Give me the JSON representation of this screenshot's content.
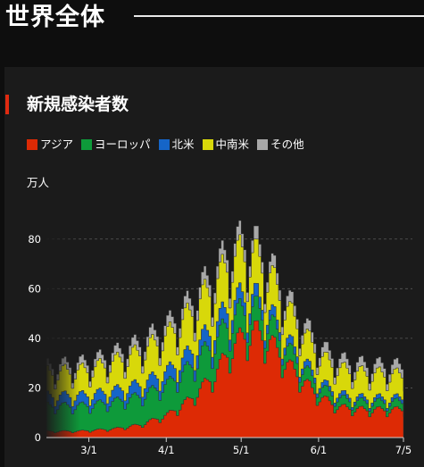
{
  "header": {
    "title": "世界全体"
  },
  "section": {
    "title": "新規感染者数"
  },
  "colors": {
    "accent": "#e02a10",
    "asia": "#dd2a05",
    "europe": "#0e9a3a",
    "north_america": "#1565c8",
    "latin_america": "#d8d80a",
    "other": "#a8a8a8",
    "background": "#0e0e0e",
    "panel": "#1b1b1b"
  },
  "chart_data": {
    "type": "area",
    "stacked": true,
    "ylabel": "万人",
    "ylim": [
      0,
      90
    ],
    "yticks": [
      0,
      20,
      40,
      60,
      80
    ],
    "grid": true,
    "legend_position": "top-left",
    "x_tick_labels": [
      "3/1",
      "4/1",
      "5/1",
      "6/1",
      "7/5"
    ],
    "x_tick_days": [
      0,
      31,
      61,
      92,
      126
    ],
    "x_start": "2/12",
    "x_end": "7/5",
    "weekly_cycle_note_pattern": [
      0.76,
      0.9,
      1.04,
      1.12,
      1.14,
      1.06,
      0.98
    ],
    "series": [
      {
        "name": "アジア",
        "color": "#dd2a05",
        "anchor_days": [
          -17,
          -5,
          0,
          10,
          20,
          31,
          40,
          50,
          55,
          61,
          66,
          72,
          80,
          92,
          100,
          110,
          126
        ],
        "anchor_values": [
          2.5,
          2.5,
          2.8,
          3.5,
          5,
          9,
          15,
          25,
          33,
          40,
          42,
          38,
          28,
          16,
          12,
          11,
          11
        ]
      },
      {
        "name": "ヨーロッパ",
        "color": "#0e9a3a",
        "anchor_days": [
          -17,
          0,
          15,
          31,
          45,
          55,
          61,
          70,
          80,
          92,
          105,
          126
        ],
        "anchor_values": [
          10,
          10,
          11,
          12,
          13,
          12,
          10,
          8,
          6,
          4,
          3,
          3
        ]
      },
      {
        "name": "北米",
        "color": "#1565c8",
        "anchor_days": [
          -17,
          0,
          15,
          31,
          45,
          55,
          61,
          70,
          80,
          92,
          105,
          126
        ],
        "anchor_values": [
          4,
          4,
          4.5,
          5,
          6,
          6,
          5.5,
          4,
          3,
          2,
          1.5,
          1.5
        ]
      },
      {
        "name": "中南米",
        "color": "#d8d80a",
        "anchor_days": [
          -17,
          0,
          15,
          31,
          45,
          55,
          61,
          70,
          80,
          92,
          105,
          126
        ],
        "anchor_values": [
          9,
          10,
          12,
          14,
          16,
          17,
          17,
          15,
          12,
          10,
          10,
          9
        ]
      },
      {
        "name": "その他",
        "color": "#a8a8a8",
        "anchor_days": [
          -17,
          0,
          31,
          55,
          61,
          80,
          100,
          126
        ],
        "anchor_values": [
          2.5,
          3,
          4,
          5,
          5,
          4,
          3.5,
          3.5
        ]
      }
    ]
  }
}
